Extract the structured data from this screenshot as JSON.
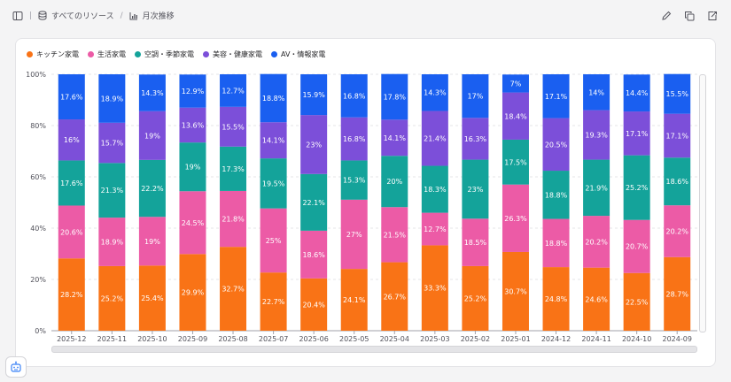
{
  "toolbar": {
    "resources_label": "すべてのリソース",
    "view_label": "月次推移"
  },
  "chart_data": {
    "type": "bar",
    "stacked": true,
    "normalized": true,
    "categories": [
      "2025-12",
      "2025-11",
      "2025-10",
      "2025-09",
      "2025-08",
      "2025-07",
      "2025-06",
      "2025-05",
      "2025-04",
      "2025-03",
      "2025-02",
      "2025-01",
      "2024-12",
      "2024-11",
      "2024-10",
      "2024-09"
    ],
    "yticks": [
      "0%",
      "20%",
      "40%",
      "60%",
      "80%",
      "100%"
    ],
    "ylim": [
      0,
      100
    ],
    "series": [
      {
        "name": "キッチン家電",
        "color": "#f97316",
        "labels": [
          "28.2%",
          "25.2%",
          "25.4%",
          "29.9%",
          "32.7%",
          "22.7%",
          "20.4%",
          "24.1%",
          "26.7%",
          "33.3%",
          "25.2%",
          "30.7%",
          "24.8%",
          "24.6%",
          "22.5%",
          "28.7%"
        ],
        "values": [
          28.2,
          25.2,
          25.4,
          29.9,
          32.7,
          22.7,
          20.4,
          24.1,
          26.7,
          33.3,
          25.2,
          30.7,
          24.8,
          24.6,
          22.5,
          28.7
        ]
      },
      {
        "name": "生活家電",
        "color": "#ec5ba6",
        "labels": [
          "20.6%",
          "18.9%",
          "19%",
          "24.5%",
          "21.8%",
          "25%",
          "18.6%",
          "27%",
          "21.5%",
          "12.7%",
          "18.5%",
          "26.3%",
          "18.8%",
          "20.2%",
          "20.7%",
          "20.2%"
        ],
        "values": [
          20.6,
          18.9,
          19,
          24.5,
          21.8,
          25,
          18.6,
          27,
          21.5,
          12.7,
          18.5,
          26.3,
          18.8,
          20.2,
          20.7,
          20.2
        ]
      },
      {
        "name": "空調・季節家電",
        "color": "#14a39a",
        "labels": [
          "17.6%",
          "21.3%",
          "22.2%",
          "19%",
          "17.3%",
          "19.5%",
          "22.1%",
          "15.3%",
          "20%",
          "18.3%",
          "23%",
          "17.5%",
          "18.8%",
          "21.9%",
          "25.2%",
          "18.6%"
        ],
        "values": [
          17.6,
          21.3,
          22.2,
          19,
          17.3,
          19.5,
          22.1,
          15.3,
          20,
          18.3,
          23,
          17.5,
          18.8,
          21.9,
          25.2,
          18.6
        ]
      },
      {
        "name": "美容・健康家電",
        "color": "#7c4fd9",
        "labels": [
          "16%",
          "15.7%",
          "19%",
          "13.6%",
          "15.5%",
          "14.1%",
          "23%",
          "16.8%",
          "14.1%",
          "21.4%",
          "16.3%",
          "18.4%",
          "20.5%",
          "19.3%",
          "17.1%",
          "17.1%"
        ],
        "values": [
          16,
          15.7,
          19,
          13.6,
          15.5,
          14.1,
          23,
          16.8,
          14.1,
          21.4,
          16.3,
          18.4,
          20.5,
          19.3,
          17.1,
          17.1
        ]
      },
      {
        "name": "AV・情報家電",
        "color": "#1a5ff0",
        "labels": [
          "17.6%",
          "18.9%",
          "14.3%",
          "12.9%",
          "12.7%",
          "18.8%",
          "15.9%",
          "16.8%",
          "17.8%",
          "14.3%",
          "17%",
          "7%",
          "17.1%",
          "14%",
          "14.4%",
          "15.5%"
        ],
        "values": [
          17.6,
          18.9,
          14.3,
          12.9,
          12.7,
          18.8,
          15.9,
          16.8,
          17.8,
          14.3,
          17,
          7,
          17.1,
          14,
          14.4,
          15.5
        ]
      }
    ]
  }
}
